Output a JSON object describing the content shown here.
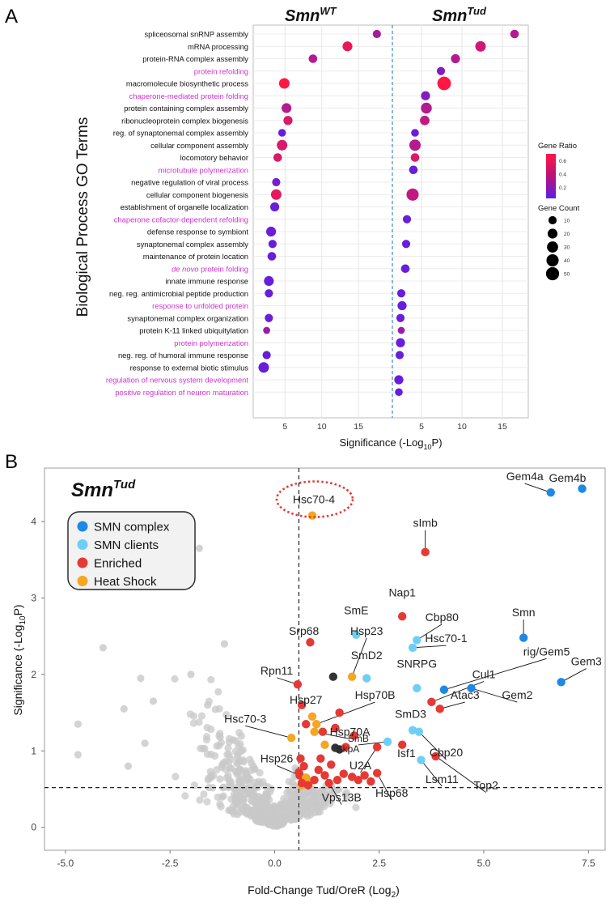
{
  "panels": {
    "a": "A",
    "b": "B"
  },
  "chart_data": [
    {
      "type": "dot",
      "ylabel": "Biological Process GO Terms",
      "xlabel_main": "Significance (-Log",
      "xlabel_sub": "10",
      "xlabel_end": "P)",
      "facets": [
        {
          "name": "Smn",
          "sup": "WT",
          "xlim": [
            1,
            19.5
          ],
          "ticks": [
            5,
            10,
            15
          ]
        },
        {
          "name": "Smn",
          "sup": "Tud",
          "xlim": [
            1.5,
            18
          ],
          "ticks": [
            5,
            10,
            15
          ]
        }
      ],
      "colors": {
        "emphasis": "#cc33cc",
        "normal": "#111111",
        "gradient_high": "#ff1744",
        "gradient_low": "#5b1fe6",
        "divider": "#4a90d9"
      },
      "terms": [
        {
          "label": "spliceosomal snRNP assembly",
          "em": false,
          "wt": {
            "x": 17.5,
            "r": 0.35,
            "s": 10
          },
          "tud": {
            "x": 16.5,
            "r": 0.4,
            "s": 12
          }
        },
        {
          "label": "mRNA processing",
          "em": false,
          "wt": {
            "x": 13.5,
            "r": 0.62,
            "s": 20
          },
          "tud": {
            "x": 12.3,
            "r": 0.5,
            "s": 25
          }
        },
        {
          "label": "protein-RNA complex assembly",
          "em": false,
          "wt": {
            "x": 8.8,
            "r": 0.4,
            "s": 12
          },
          "tud": {
            "x": 9.2,
            "r": 0.4,
            "s": 15
          }
        },
        {
          "label": "protein refolding",
          "em": true,
          "wt": null,
          "tud": {
            "x": 7.4,
            "r": 0.2,
            "s": 10
          }
        },
        {
          "label": "macromolecule biosynthetic process",
          "em": false,
          "wt": {
            "x": 4.9,
            "r": 0.7,
            "s": 25
          },
          "tud": {
            "x": 7.8,
            "r": 0.7,
            "s": 55
          }
        },
        {
          "label": "chaperone-mediated protein folding",
          "em": true,
          "wt": null,
          "tud": {
            "x": 5.5,
            "r": 0.2,
            "s": 15
          }
        },
        {
          "label": "protein containing complex assembly",
          "em": false,
          "wt": {
            "x": 5.2,
            "r": 0.4,
            "s": 20
          },
          "tud": {
            "x": 5.6,
            "r": 0.4,
            "s": 28
          }
        },
        {
          "label": "ribonucleoprotein complex biogenesis",
          "em": false,
          "wt": {
            "x": 5.4,
            "r": 0.55,
            "s": 15
          },
          "tud": {
            "x": 5.4,
            "r": 0.45,
            "s": 18
          }
        },
        {
          "label": "reg. of synaptonemal complex assembly",
          "em": false,
          "wt": {
            "x": 4.6,
            "r": 0.1,
            "s": 8
          },
          "tud": {
            "x": 4.2,
            "r": 0.1,
            "s": 8
          }
        },
        {
          "label": "cellular component assembly",
          "em": false,
          "wt": {
            "x": 4.6,
            "r": 0.55,
            "s": 25
          },
          "tud": {
            "x": 4.2,
            "r": 0.4,
            "s": 32
          }
        },
        {
          "label": "locomotory behavior",
          "em": false,
          "wt": {
            "x": 4.0,
            "r": 0.55,
            "s": 12
          },
          "tud": {
            "x": 4.2,
            "r": 0.55,
            "s": 12
          }
        },
        {
          "label": "microtubule polymerization",
          "em": true,
          "wt": null,
          "tud": {
            "x": 4.0,
            "r": 0.1,
            "s": 12
          }
        },
        {
          "label": "negative regulation of viral process",
          "em": false,
          "wt": {
            "x": 3.8,
            "r": 0.15,
            "s": 10
          },
          "tud": null
        },
        {
          "label": "cellular component biogenesis",
          "em": false,
          "wt": {
            "x": 3.8,
            "r": 0.6,
            "s": 25
          },
          "tud": {
            "x": 3.9,
            "r": 0.45,
            "s": 40
          }
        },
        {
          "label": "establishment of organelle localization",
          "em": false,
          "wt": {
            "x": 3.6,
            "r": 0.1,
            "s": 15
          },
          "tud": null
        },
        {
          "label": "chaperone cofactor-dependent refolding",
          "em": true,
          "wt": null,
          "tud": {
            "x": 3.2,
            "r": 0.1,
            "s": 10
          }
        },
        {
          "label": "defense response to symbiont",
          "em": false,
          "wt": {
            "x": 3.1,
            "r": 0.1,
            "s": 20
          },
          "tud": null
        },
        {
          "label": "synaptonemal complex assembly",
          "em": false,
          "wt": {
            "x": 3.3,
            "r": 0.1,
            "s": 10
          },
          "tud": {
            "x": 3.1,
            "r": 0.1,
            "s": 10
          }
        },
        {
          "label": "maintenance of protein location",
          "em": false,
          "wt": {
            "x": 3.2,
            "r": 0.1,
            "s": 12
          },
          "tud": null
        },
        {
          "label": "de novo protein folding",
          "em": true,
          "italic": true,
          "wt": null,
          "tud": {
            "x": 3.0,
            "r": 0.1,
            "s": 12
          }
        },
        {
          "label": "innate immune response",
          "em": false,
          "wt": {
            "x": 2.8,
            "r": 0.1,
            "s": 20
          },
          "tud": null
        },
        {
          "label": "neg. reg. antimicrobial peptide production",
          "em": false,
          "wt": {
            "x": 2.8,
            "r": 0.1,
            "s": 10
          },
          "tud": {
            "x": 2.5,
            "r": 0.1,
            "s": 10
          }
        },
        {
          "label": "response to unfolded protein",
          "em": true,
          "wt": null,
          "tud": {
            "x": 2.6,
            "r": 0.1,
            "s": 15
          }
        },
        {
          "label": "synaptonemal complex organization",
          "em": false,
          "wt": {
            "x": 2.8,
            "r": 0.1,
            "s": 10
          },
          "tud": {
            "x": 2.4,
            "r": 0.1,
            "s": 10
          }
        },
        {
          "label": "protein K-11 linked ubiquitylation",
          "em": false,
          "wt": {
            "x": 2.5,
            "r": 0.3,
            "s": 5
          },
          "tud": {
            "x": 2.5,
            "r": 0.3,
            "s": 5
          }
        },
        {
          "label": "protein polymerization",
          "em": true,
          "wt": null,
          "tud": {
            "x": 2.4,
            "r": 0.1,
            "s": 15
          }
        },
        {
          "label": "neg. reg. of humoral immune response",
          "em": false,
          "wt": {
            "x": 2.5,
            "r": 0.1,
            "s": 10
          },
          "tud": {
            "x": 2.3,
            "r": 0.1,
            "s": 10
          }
        },
        {
          "label": "response to external biotic stimulus",
          "em": false,
          "wt": {
            "x": 2.1,
            "r": 0.1,
            "s": 25
          },
          "tud": null
        },
        {
          "label": "regulation of nervous system development",
          "em": true,
          "wt": null,
          "tud": {
            "x": 2.2,
            "r": 0.1,
            "s": 15
          }
        },
        {
          "label": "positive regulation of neuron maturation",
          "em": true,
          "wt": null,
          "tud": {
            "x": 2.2,
            "r": 0.1,
            "s": 8
          }
        }
      ],
      "legend": {
        "ratio_title": "Gene Ratio",
        "ratio_ticks": [
          "0.6",
          "0.4",
          "0.2"
        ],
        "count_title": "Gene Count",
        "count_items": [
          "10",
          "20",
          "30",
          "40",
          "50"
        ]
      }
    },
    {
      "type": "scatter",
      "title": "Smn",
      "title_sup": "Tud",
      "xlabel_main": "Fold-Change Tud/OreR (Log",
      "xlabel_sub": "2",
      "xlabel_end": ")",
      "ylabel_main": "Significance (-Log",
      "ylabel_sub": "10",
      "ylabel_end": "P)",
      "xlim": [
        -5.5,
        7.9
      ],
      "ylim": [
        -0.3,
        4.7
      ],
      "xticks": [
        "-5.0",
        "-2.5",
        "0.0",
        "2.5",
        "5.0",
        "7.5"
      ],
      "xtick_values": [
        -5,
        -2.5,
        0,
        2.5,
        5,
        7.5
      ],
      "yticks": [
        "0",
        "1",
        "2",
        "3",
        "4"
      ],
      "ytick_values": [
        0,
        1,
        2,
        3,
        4
      ],
      "vline": 0.58,
      "hline": 0.52,
      "legend": [
        {
          "label": "SMN complex",
          "color": "#1e88e5"
        },
        {
          "label": "SMN clients",
          "color": "#6ecff6"
        },
        {
          "label": "Enriched",
          "color": "#e53935"
        },
        {
          "label": "Heat Shock",
          "color": "#f5a623"
        }
      ],
      "colors": {
        "background": "#c8c8c8",
        "dark": "#333333",
        "circle": "#e53935"
      },
      "highlight": {
        "label": "Hsc70-4",
        "x": 0.9,
        "y": 4.08
      },
      "points": [
        {
          "label": "Gem4a",
          "g": "complex",
          "x": 6.6,
          "y": 4.38,
          "lx": 5.98,
          "ly": 4.54
        },
        {
          "label": "Gem4b",
          "g": "complex",
          "x": 7.35,
          "y": 4.43,
          "lx": 7.0,
          "ly": 4.52
        },
        {
          "label": "Smn",
          "g": "complex",
          "x": 5.95,
          "y": 2.48,
          "lx": 5.95,
          "ly": 2.76
        },
        {
          "label": "rig/Gem5",
          "g": "complex",
          "x": 4.05,
          "y": 1.8,
          "lx": 6.5,
          "ly": 2.25
        },
        {
          "label": "Gem2",
          "g": "complex",
          "x": 4.7,
          "y": 1.82,
          "lx": 5.8,
          "ly": 1.68
        },
        {
          "label": "Gem3",
          "g": "complex",
          "x": 6.85,
          "y": 1.9,
          "lx": 7.45,
          "ly": 2.12
        },
        {
          "label": "sImb",
          "g": "enriched",
          "x": 3.6,
          "y": 3.6,
          "lx": 3.6,
          "ly": 3.93
        },
        {
          "label": "Nap1",
          "g": "enriched",
          "x": 3.05,
          "y": 2.76,
          "lx": 3.05,
          "ly": 3.02
        },
        {
          "label": "Srp68",
          "g": "enriched",
          "x": 0.85,
          "y": 2.42,
          "lx": 0.7,
          "ly": 2.52
        },
        {
          "label": "Rpn11",
          "g": "enriched",
          "x": 0.55,
          "y": 1.87,
          "lx": 0.05,
          "ly": 2.0
        },
        {
          "label": "Cul1",
          "g": "enriched",
          "x": 3.75,
          "y": 1.64,
          "lx": 5.0,
          "ly": 1.95
        },
        {
          "label": "Atac3",
          "g": "enriched",
          "x": 3.95,
          "y": 1.55,
          "lx": 4.55,
          "ly": 1.68
        },
        {
          "label": "Isf1",
          "g": "enriched",
          "x": 3.05,
          "y": 1.08,
          "lx": 3.15,
          "ly": 0.92
        },
        {
          "label": "Top2",
          "g": "enriched",
          "x": 3.85,
          "y": 0.93,
          "lx": 5.05,
          "ly": 0.5
        },
        {
          "label": "Hsp26",
          "g": "enriched",
          "x": 0.6,
          "y": 0.68,
          "lx": 0.05,
          "ly": 0.85
        },
        {
          "label": "Vps13B",
          "g": "enriched",
          "x": 1.2,
          "y": 0.68,
          "lx": 1.6,
          "ly": 0.34
        },
        {
          "label": "Hsp68",
          "g": "enriched",
          "x": 2.45,
          "y": 0.71,
          "lx": 2.8,
          "ly": 0.4
        },
        {
          "label": "U2A",
          "g": "enriched",
          "x": 2.45,
          "y": 1.05,
          "lx": 2.05,
          "ly": 0.76
        },
        {
          "label": "SmE",
          "g": "clients",
          "x": 1.95,
          "y": 2.52,
          "lx": 1.95,
          "ly": 2.79
        },
        {
          "label": "Cbp80",
          "g": "clients",
          "x": 3.4,
          "y": 2.45,
          "lx": 4.0,
          "ly": 2.7
        },
        {
          "label": "Hsc70-1",
          "g": "clients",
          "x": 3.3,
          "y": 2.35,
          "lx": 4.1,
          "ly": 2.42
        },
        {
          "label": "SmD2",
          "g": "clients",
          "x": 2.2,
          "y": 1.95,
          "lx": 2.2,
          "ly": 2.2
        },
        {
          "label": "SNRPG",
          "g": "clients",
          "x": 3.4,
          "y": 1.82,
          "lx": 3.4,
          "ly": 2.09
        },
        {
          "label": "SmD3",
          "g": "clients",
          "x": 3.3,
          "y": 1.27,
          "lx": 3.25,
          "ly": 1.43
        },
        {
          "label": "SmB",
          "g": "clients",
          "x": 2.7,
          "y": 1.12,
          "lx": 2.0,
          "ly": 1.12
        },
        {
          "label": "Cbp20",
          "g": "clients",
          "x": 3.45,
          "y": 1.25,
          "lx": 4.1,
          "ly": 0.93
        },
        {
          "label": "Lsm11",
          "g": "clients",
          "x": 3.5,
          "y": 0.88,
          "lx": 4.0,
          "ly": 0.58
        },
        {
          "label": "Hsp23",
          "g": "heat",
          "x": 1.85,
          "y": 1.97,
          "lx": 2.2,
          "ly": 2.52
        },
        {
          "label": "Hsp27",
          "g": "heat",
          "x": 0.9,
          "y": 1.45,
          "lx": 0.75,
          "ly": 1.62
        },
        {
          "label": "Hsp70B",
          "g": "heat",
          "x": 1.0,
          "y": 1.35,
          "lx": 2.4,
          "ly": 1.68
        },
        {
          "label": "Hsp70A",
          "g": "heat",
          "x": 0.95,
          "y": 1.25,
          "lx": 1.8,
          "ly": 1.2
        },
        {
          "label": "Hsc70-3",
          "g": "heat",
          "x": 0.4,
          "y": 1.17,
          "lx": -0.7,
          "ly": 1.37
        },
        {
          "label": "SkpA",
          "g": "dark",
          "x": 1.45,
          "y": 1.04,
          "lx": 1.75,
          "ly": 0.98
        },
        {
          "label": "",
          "g": "dark",
          "x": 1.4,
          "y": 1.97,
          "lx": 0,
          "ly": 0
        },
        {
          "label": "",
          "g": "dark",
          "x": 1.55,
          "y": 1.02,
          "lx": 0,
          "ly": 0
        },
        {
          "label": "",
          "g": "heat",
          "x": 1.2,
          "y": 1.08,
          "lx": 0,
          "ly": 0
        },
        {
          "label": "",
          "g": "heat",
          "x": 0.85,
          "y": 0.6,
          "lx": 0,
          "ly": 0
        },
        {
          "label": "",
          "g": "heat",
          "x": 0.65,
          "y": 0.55,
          "lx": 0,
          "ly": 0
        },
        {
          "label": "",
          "g": "heat",
          "x": 0.75,
          "y": 0.65,
          "lx": 0,
          "ly": 0
        },
        {
          "label": "",
          "g": "enriched",
          "x": 0.65,
          "y": 1.6,
          "lx": 0,
          "ly": 0
        },
        {
          "label": "",
          "g": "enriched",
          "x": 0.75,
          "y": 1.35,
          "lx": 0,
          "ly": 0
        },
        {
          "label": "",
          "g": "enriched",
          "x": 1.15,
          "y": 1.25,
          "lx": 0,
          "ly": 0
        },
        {
          "label": "",
          "g": "enriched",
          "x": 1.45,
          "y": 1.3,
          "lx": 0,
          "ly": 0
        },
        {
          "label": "",
          "g": "enriched",
          "x": 1.55,
          "y": 1.5,
          "lx": 0,
          "ly": 0
        },
        {
          "label": "",
          "g": "enriched",
          "x": 1.9,
          "y": 1.2,
          "lx": 0,
          "ly": 0
        },
        {
          "label": "",
          "g": "enriched",
          "x": 1.7,
          "y": 1.05,
          "lx": 0,
          "ly": 0
        },
        {
          "label": "",
          "g": "enriched",
          "x": 0.62,
          "y": 0.9,
          "lx": 0,
          "ly": 0
        },
        {
          "label": "",
          "g": "enriched",
          "x": 0.7,
          "y": 0.8,
          "lx": 0,
          "ly": 0
        },
        {
          "label": "",
          "g": "enriched",
          "x": 0.58,
          "y": 0.72,
          "lx": 0,
          "ly": 0
        },
        {
          "label": "",
          "g": "enriched",
          "x": 0.8,
          "y": 0.55,
          "lx": 0,
          "ly": 0
        },
        {
          "label": "",
          "g": "enriched",
          "x": 0.95,
          "y": 0.62,
          "lx": 0,
          "ly": 0
        },
        {
          "label": "",
          "g": "enriched",
          "x": 1.05,
          "y": 0.75,
          "lx": 0,
          "ly": 0
        },
        {
          "label": "",
          "g": "enriched",
          "x": 1.3,
          "y": 0.58,
          "lx": 0,
          "ly": 0
        },
        {
          "label": "",
          "g": "enriched",
          "x": 1.5,
          "y": 0.62,
          "lx": 0,
          "ly": 0
        },
        {
          "label": "",
          "g": "enriched",
          "x": 1.65,
          "y": 0.7,
          "lx": 0,
          "ly": 0
        },
        {
          "label": "",
          "g": "enriched",
          "x": 1.85,
          "y": 0.66,
          "lx": 0,
          "ly": 0
        },
        {
          "label": "",
          "g": "enriched",
          "x": 2.0,
          "y": 0.62,
          "lx": 0,
          "ly": 0
        },
        {
          "label": "",
          "g": "enriched",
          "x": 2.15,
          "y": 0.68,
          "lx": 0,
          "ly": 0
        },
        {
          "label": "",
          "g": "enriched",
          "x": 2.3,
          "y": 0.6,
          "lx": 0,
          "ly": 0
        },
        {
          "label": "",
          "g": "enriched",
          "x": 0.65,
          "y": 0.58,
          "lx": 0,
          "ly": 0
        },
        {
          "label": "",
          "g": "enriched",
          "x": 1.1,
          "y": 0.9,
          "lx": 0,
          "ly": 0
        },
        {
          "label": "",
          "g": "enriched",
          "x": 1.35,
          "y": 0.82,
          "lx": 0,
          "ly": 0
        }
      ]
    }
  ]
}
